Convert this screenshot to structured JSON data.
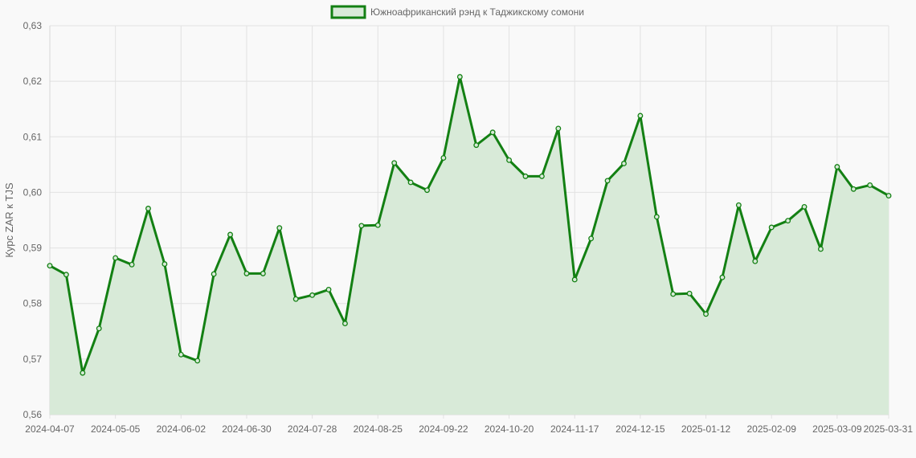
{
  "chart_data": {
    "type": "line",
    "title": "",
    "xlabel": "",
    "ylabel": "Курс ZAR к TJS",
    "ylim": [
      0.56,
      0.63
    ],
    "y_ticks": [
      "0,63",
      "0,62",
      "0,61",
      "0,60",
      "0,59",
      "0,58",
      "0,57",
      "0,56"
    ],
    "x_tick_labels": [
      "2024-04-07",
      "2024-05-05",
      "2024-06-02",
      "2024-06-30",
      "2024-07-28",
      "2024-08-25",
      "2024-09-22",
      "2024-10-20",
      "2024-11-17",
      "2024-12-15",
      "2025-01-12",
      "2025-02-09",
      "2025-03-09",
      "2025-03-31"
    ],
    "grid": true,
    "legend_position": "top-center",
    "colors": {
      "line": "#138013",
      "fill": "#d8ead8",
      "grid": "#e2e2e2"
    },
    "series": [
      {
        "name": "Южноафриканский рэнд к Таджикскому сомони",
        "x": [
          "2024-04-07",
          "2024-04-14",
          "2024-04-21",
          "2024-04-28",
          "2024-05-05",
          "2024-05-12",
          "2024-05-19",
          "2024-05-26",
          "2024-06-02",
          "2024-06-09",
          "2024-06-16",
          "2024-06-23",
          "2024-06-30",
          "2024-07-07",
          "2024-07-14",
          "2024-07-21",
          "2024-07-28",
          "2024-08-04",
          "2024-08-11",
          "2024-08-18",
          "2024-08-25",
          "2024-09-01",
          "2024-09-08",
          "2024-09-15",
          "2024-09-22",
          "2024-09-29",
          "2024-10-06",
          "2024-10-13",
          "2024-10-20",
          "2024-10-27",
          "2024-11-03",
          "2024-11-10",
          "2024-11-17",
          "2024-11-24",
          "2024-12-01",
          "2024-12-08",
          "2024-12-15",
          "2024-12-22",
          "2024-12-29",
          "2025-01-05",
          "2025-01-12",
          "2025-01-19",
          "2025-01-26",
          "2025-02-02",
          "2025-02-09",
          "2025-02-16",
          "2025-02-23",
          "2025-03-02",
          "2025-03-09",
          "2025-03-16",
          "2025-03-23",
          "2025-03-31"
        ],
        "values": [
          0.5868,
          0.5852,
          0.5675,
          0.5755,
          0.5882,
          0.587,
          0.5971,
          0.5871,
          0.5708,
          0.5697,
          0.5853,
          0.5924,
          0.5854,
          0.5854,
          0.5936,
          0.5808,
          0.5815,
          0.5825,
          0.5764,
          0.594,
          0.5941,
          0.6053,
          0.6018,
          0.6004,
          0.6062,
          0.6208,
          0.6085,
          0.6108,
          0.6058,
          0.6029,
          0.6029,
          0.6115,
          0.5843,
          0.5917,
          0.6021,
          0.6052,
          0.6138,
          0.5956,
          0.5817,
          0.5818,
          0.5781,
          0.5847,
          0.5977,
          0.5876,
          0.5937,
          0.5949,
          0.5974,
          0.5898,
          0.6046,
          0.6006,
          0.6013,
          0.5994
        ]
      }
    ]
  }
}
